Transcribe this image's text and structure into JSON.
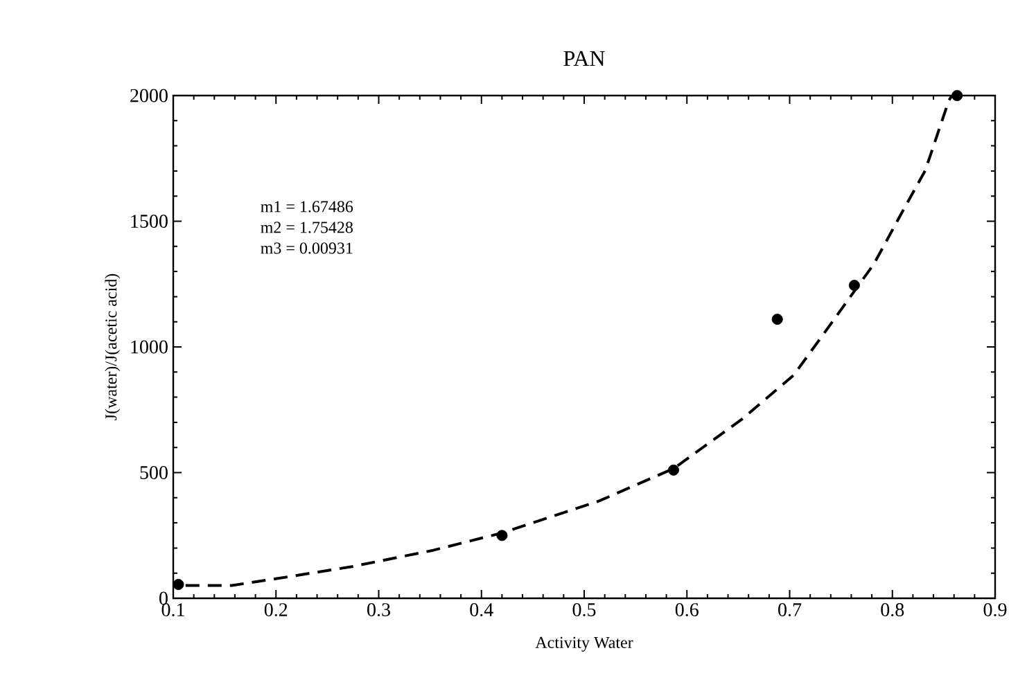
{
  "chart_data": {
    "type": "scatter",
    "title": "PAN",
    "xlabel": "Activity Water",
    "ylabel": "J(water)/J(acetic acid)",
    "xlim": [
      0.1,
      0.9
    ],
    "ylim": [
      0,
      2000
    ],
    "xticks": [
      0.1,
      0.2,
      0.3,
      0.4,
      0.5,
      0.6,
      0.7,
      0.8,
      0.9
    ],
    "yticks": [
      0,
      500,
      1000,
      1500,
      2000
    ],
    "grid": false,
    "annotations": [
      "m1 = 1.67486",
      "m2 = 1.75428",
      "m3 = 0.00931"
    ],
    "series": [
      {
        "color": "#000000",
        "marker": "circle",
        "x": [
          0.105,
          0.42,
          0.587,
          0.688,
          0.763,
          0.863
        ],
        "values": [
          55,
          250,
          510,
          1110,
          1245,
          2000
        ]
      },
      {
        "type": "line",
        "color": "#000000",
        "line_style": "dashed",
        "marker": "none",
        "x": [
          0.112,
          0.157,
          0.202,
          0.274,
          0.353,
          0.42,
          0.515,
          0.587,
          0.654,
          0.704,
          0.737,
          0.782,
          0.81,
          0.832,
          0.855,
          0.858
        ],
        "values": [
          51,
          51,
          79,
          126,
          191,
          260,
          388,
          516,
          714,
          888,
          1074,
          1330,
          1540,
          1702,
          1981,
          2000
        ]
      }
    ]
  }
}
